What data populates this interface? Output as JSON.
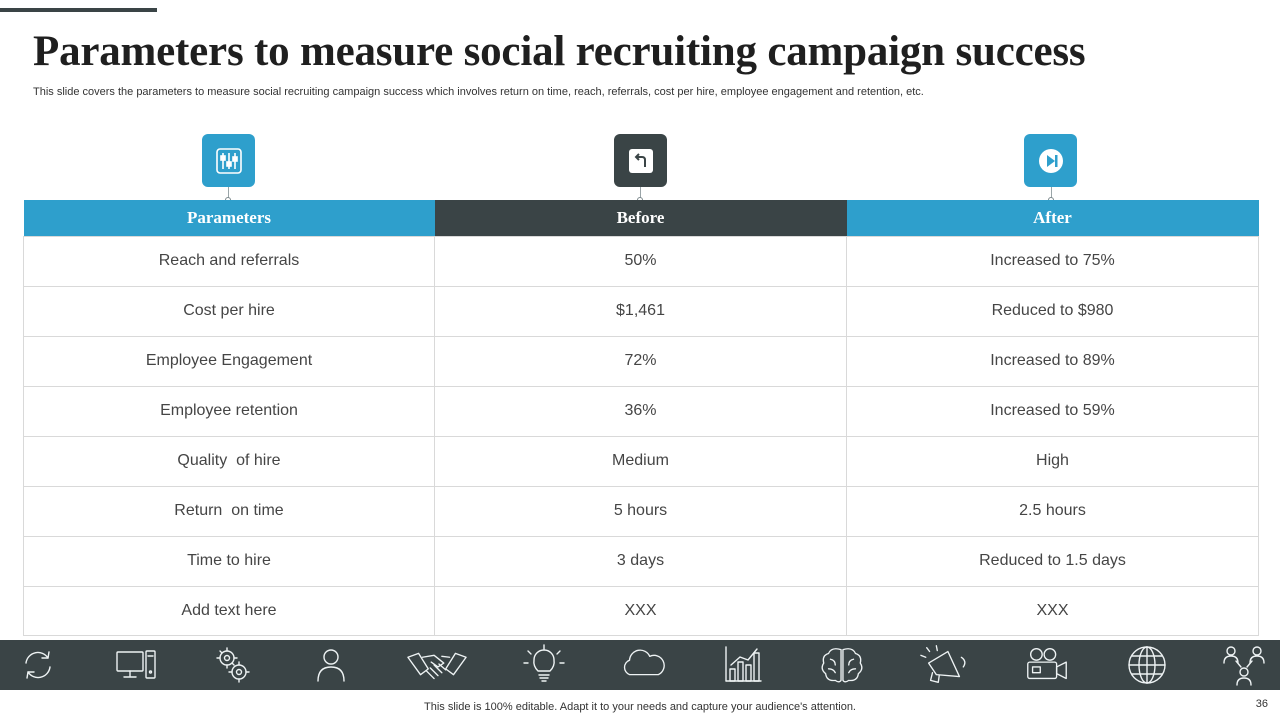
{
  "title": "Parameters to measure social recruiting campaign success",
  "subtitle": "This slide covers the parameters to measure social recruiting campaign success which involves return on time, reach, referrals, cost per hire, employee engagement and retention, etc.",
  "header_icons": [
    {
      "name": "sliders-icon",
      "color": "#2e9fcc"
    },
    {
      "name": "undo-arrow-icon",
      "color": "#3a4446"
    },
    {
      "name": "play-next-icon",
      "color": "#2e9fcc"
    }
  ],
  "table": {
    "headers": [
      "Parameters",
      "Before",
      "After"
    ],
    "rows": [
      [
        "Reach and referrals",
        "50%",
        "Increased to 75%"
      ],
      [
        "Cost per hire",
        "$1,461",
        "Reduced to $980"
      ],
      [
        "Employee Engagement",
        "72%",
        "Increased to 89%"
      ],
      [
        "Employee retention",
        "36%",
        "Increased to 59%"
      ],
      [
        "Quality  of hire",
        "Medium",
        "High"
      ],
      [
        "Return  on time",
        "5 hours",
        "2.5 hours"
      ],
      [
        "Time to hire",
        "3 days",
        "Reduced to 1.5 days"
      ],
      [
        "Add text here",
        "XXX",
        "XXX"
      ]
    ]
  },
  "icon_band": [
    "refresh-icon",
    "computer-icon",
    "gears-icon",
    "user-icon",
    "handshake-icon",
    "lightbulb-icon",
    "cloud-icon",
    "bar-chart-icon",
    "brain-icon",
    "megaphone-icon",
    "video-camera-icon",
    "globe-icon",
    "team-network-icon"
  ],
  "colors": {
    "accent_blue": "#2e9fcc",
    "dark_slate": "#3a4446"
  },
  "footer": "This slide is 100% editable. Adapt it to your needs and capture your audience's attention.",
  "page_number": "36"
}
